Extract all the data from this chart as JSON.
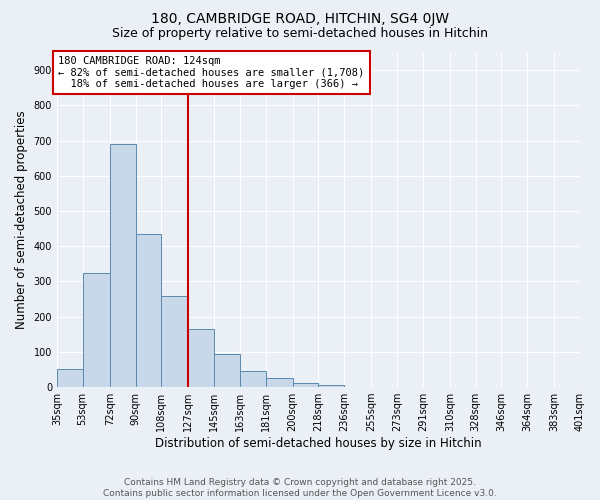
{
  "title": "180, CAMBRIDGE ROAD, HITCHIN, SG4 0JW",
  "subtitle": "Size of property relative to semi-detached houses in Hitchin",
  "xlabel": "Distribution of semi-detached houses by size in Hitchin",
  "ylabel": "Number of semi-detached properties",
  "bins": [
    35,
    53,
    72,
    90,
    108,
    127,
    145,
    163,
    181,
    200,
    218,
    236,
    255,
    273,
    291,
    310,
    328,
    346,
    364,
    383,
    401
  ],
  "counts": [
    50,
    325,
    690,
    435,
    260,
    165,
    93,
    47,
    26,
    11,
    7,
    0,
    0,
    0,
    0,
    0,
    0,
    0,
    0,
    0
  ],
  "bar_color": "#c8d8e8",
  "bar_edge_color": "#5a8ab0",
  "vline_x": 127,
  "vline_color": "#cc0000",
  "annotation_text": "180 CAMBRIDGE ROAD: 124sqm\n← 82% of semi-detached houses are smaller (1,708)\n  18% of semi-detached houses are larger (366) →",
  "annotation_box_color": "#ffffff",
  "annotation_box_edge": "#cc0000",
  "ylim": [
    0,
    950
  ],
  "yticks": [
    0,
    100,
    200,
    300,
    400,
    500,
    600,
    700,
    800,
    900
  ],
  "tick_labels": [
    "35sqm",
    "53sqm",
    "72sqm",
    "90sqm",
    "108sqm",
    "127sqm",
    "145sqm",
    "163sqm",
    "181sqm",
    "200sqm",
    "218sqm",
    "236sqm",
    "255sqm",
    "273sqm",
    "291sqm",
    "310sqm",
    "328sqm",
    "346sqm",
    "364sqm",
    "383sqm",
    "401sqm"
  ],
  "footer_line1": "Contains HM Land Registry data © Crown copyright and database right 2025.",
  "footer_line2": "Contains public sector information licensed under the Open Government Licence v3.0.",
  "background_color": "#eaf0f6",
  "grid_color": "#ffffff",
  "title_fontsize": 10,
  "subtitle_fontsize": 9,
  "axis_label_fontsize": 8.5,
  "tick_fontsize": 7,
  "footer_fontsize": 6.5,
  "annotation_fontsize": 7.5
}
